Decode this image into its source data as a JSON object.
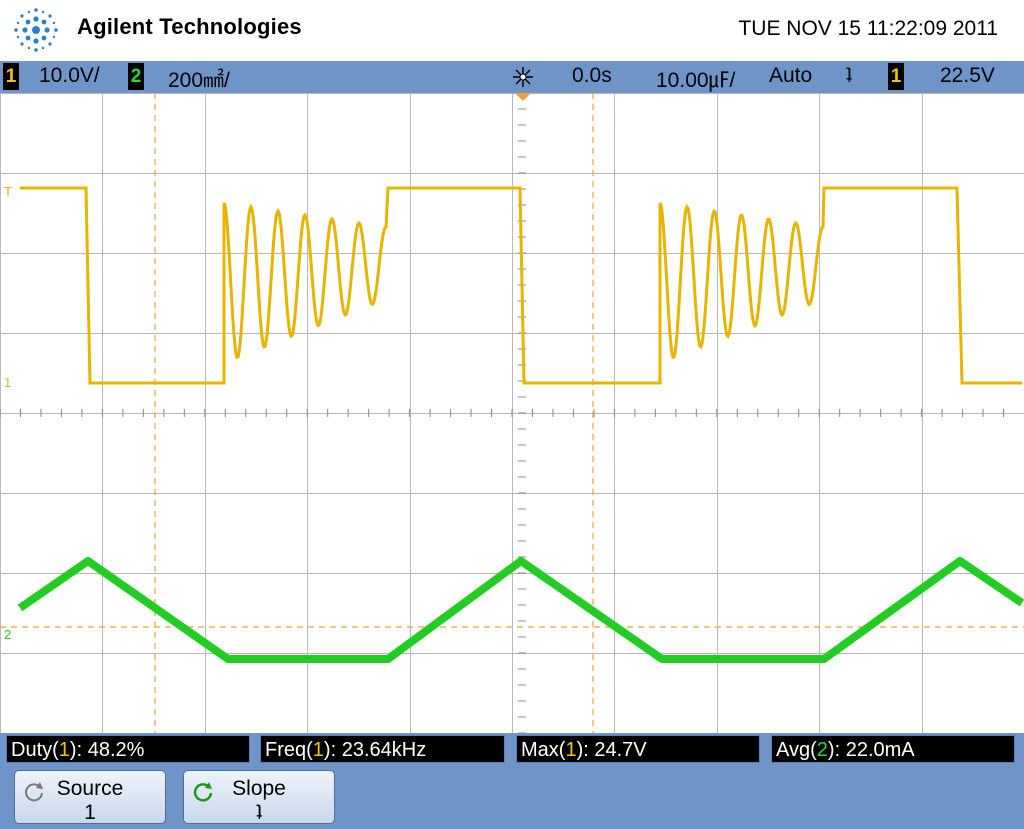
{
  "header": {
    "brand": "Agilent Technologies",
    "datetime": "TUE NOV 15 11:22:09 2011"
  },
  "status_bar": {
    "ch1_number": "1",
    "ch1_scale": "10.0V/",
    "ch2_number": "2",
    "ch2_scale": "200㎟/",
    "run_icon": "run-state-icon",
    "delay": "0.0s",
    "timebase": "10.00㎌/",
    "trigger_mode": "Auto",
    "trigger_slope_symbol": "ʇ",
    "trigger_source_number": "1",
    "trigger_level": "22.5V"
  },
  "markers": {
    "trigger_level_marker": "T",
    "ch1_ground_marker": "1",
    "ch2_ground_marker": "2"
  },
  "measurements": [
    {
      "label": "Duty",
      "channel": "1",
      "value": ": 48.2%"
    },
    {
      "label": "Freq",
      "channel": "1",
      "value": ": 23.64kHz"
    },
    {
      "label": "Max",
      "channel": "1",
      "value": ": 24.7V"
    },
    {
      "label": "Avg",
      "channel": "2",
      "value": ": 22.0mA"
    }
  ],
  "softkeys": [
    {
      "title": "Source",
      "value": "1",
      "icon": "cycle-arrow-icon"
    },
    {
      "title": "Slope",
      "value": "ʇ",
      "icon": "cycle-arrow-green-icon"
    }
  ],
  "colors": {
    "ch1": "#e9b400",
    "ch2": "#22cc22",
    "bar": "#6f95c8",
    "grid": "#b8b8b8"
  }
}
